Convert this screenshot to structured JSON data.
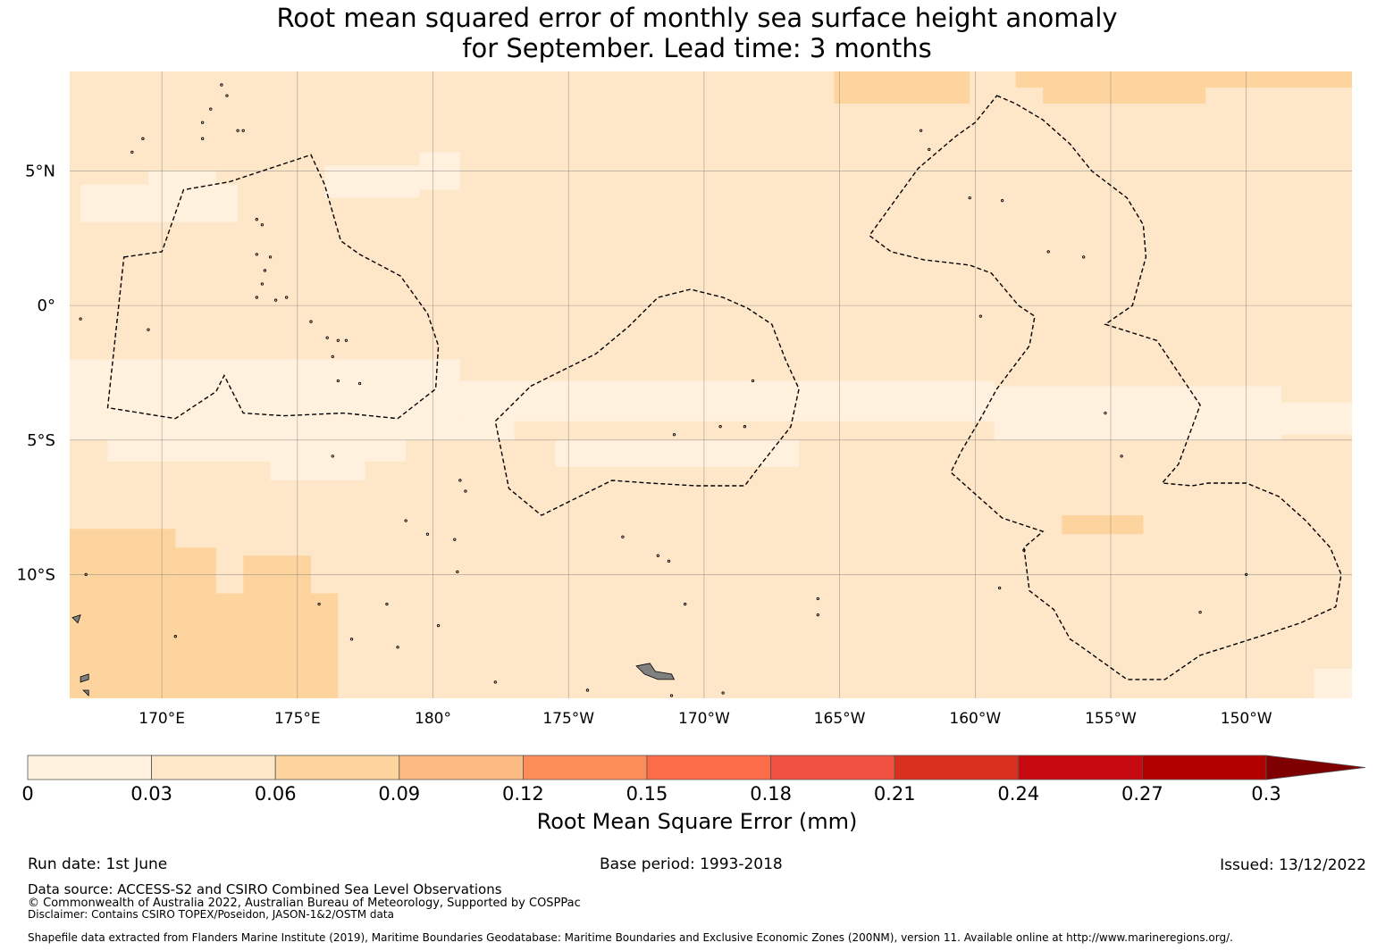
{
  "title_line1": "Root mean squared error of monthly sea surface height anomaly",
  "title_line2": "for September. Lead time: 3 months",
  "map": {
    "lon_range": [
      166.6,
      213.9
    ],
    "lat_range": [
      -14.6,
      8.7
    ],
    "lat_ticks": [
      {
        "value": 5,
        "label": "5°N"
      },
      {
        "value": 0,
        "label": "0°"
      },
      {
        "value": -5,
        "label": "5°S"
      },
      {
        "value": -10,
        "label": "10°S"
      }
    ],
    "lon_ticks": [
      {
        "value": 170,
        "label": "170°E"
      },
      {
        "value": 175,
        "label": "175°E"
      },
      {
        "value": 180,
        "label": "180°"
      },
      {
        "value": 185,
        "label": "175°W"
      },
      {
        "value": 190,
        "label": "170°W"
      },
      {
        "value": 195,
        "label": "165°W"
      },
      {
        "value": 200,
        "label": "160°W"
      },
      {
        "value": 205,
        "label": "155°W"
      },
      {
        "value": 210,
        "label": "150°W"
      }
    ],
    "background_color": "#fee6c8",
    "field": [
      {
        "lon": [
          166.6,
          181.0
        ],
        "lat": [
          -4.3,
          -2.0
        ],
        "level": "0-0.03"
      },
      {
        "lon": [
          181.0,
          200.7
        ],
        "lat": [
          -4.3,
          -2.8
        ],
        "level": "0-0.03"
      },
      {
        "lon": [
          200.7,
          211.3
        ],
        "lat": [
          -4.8,
          -3.0
        ],
        "level": "0-0.03"
      },
      {
        "lon": [
          211.3,
          213.9
        ],
        "lat": [
          -4.8,
          -3.6
        ],
        "level": "0-0.03"
      },
      {
        "lon": [
          166.6,
          183.0
        ],
        "lat": [
          -5.0,
          -4.3
        ],
        "level": "0-0.03"
      },
      {
        "lon": [
          168.0,
          179.0
        ],
        "lat": [
          -5.8,
          -5.0
        ],
        "level": "0-0.03"
      },
      {
        "lon": [
          174.0,
          177.5
        ],
        "lat": [
          -6.5,
          -5.8
        ],
        "level": "0-0.03"
      },
      {
        "lon": [
          184.5,
          193.5
        ],
        "lat": [
          -6.0,
          -5.0
        ],
        "level": "0-0.03"
      },
      {
        "lon": [
          200.7,
          211.3
        ],
        "lat": [
          -5.0,
          -4.8
        ],
        "level": "0-0.03"
      },
      {
        "lon": [
          167.0,
          172.8
        ],
        "lat": [
          3.1,
          4.5
        ],
        "level": "0-0.03"
      },
      {
        "lon": [
          169.5,
          172.0
        ],
        "lat": [
          4.5,
          5.0
        ],
        "level": "0-0.03"
      },
      {
        "lon": [
          176.0,
          179.5
        ],
        "lat": [
          4.0,
          5.2
        ],
        "level": "0-0.03"
      },
      {
        "lon": [
          179.5,
          181.0
        ],
        "lat": [
          4.3,
          5.7
        ],
        "level": "0-0.03"
      },
      {
        "lon": [
          212.5,
          213.9
        ],
        "lat": [
          -14.6,
          -13.5
        ],
        "level": "0-0.03"
      },
      {
        "lon": [
          166.6,
          176.5
        ],
        "lat": [
          -14.6,
          -10.7
        ],
        "level": "0.06-0.09"
      },
      {
        "lon": [
          166.6,
          170.5
        ],
        "lat": [
          -10.7,
          -8.3
        ],
        "level": "0.06-0.09"
      },
      {
        "lon": [
          170.5,
          172.0
        ],
        "lat": [
          -10.7,
          -9.0
        ],
        "level": "0.06-0.09"
      },
      {
        "lon": [
          173.0,
          175.5
        ],
        "lat": [
          -10.7,
          -9.3
        ],
        "level": "0.06-0.09"
      },
      {
        "lon": [
          194.8,
          199.8
        ],
        "lat": [
          7.5,
          8.7
        ],
        "level": "0.06-0.09"
      },
      {
        "lon": [
          201.5,
          213.9
        ],
        "lat": [
          8.1,
          8.7
        ],
        "level": "0.06-0.09"
      },
      {
        "lon": [
          202.5,
          208.5
        ],
        "lat": [
          7.5,
          8.1
        ],
        "level": "0.06-0.09"
      },
      {
        "lon": [
          203.2,
          206.2
        ],
        "lat": [
          -8.5,
          -7.8
        ],
        "level": "0.06-0.09"
      }
    ],
    "eez_outlines": [
      {
        "points": [
          [
            168.6,
            1.8
          ],
          [
            170.0,
            2.0
          ],
          [
            170.8,
            4.3
          ],
          [
            172.5,
            4.6
          ],
          [
            175.5,
            5.6
          ],
          [
            176.0,
            4.5
          ],
          [
            176.6,
            2.4
          ],
          [
            177.3,
            1.9
          ],
          [
            178.8,
            1.1
          ],
          [
            179.8,
            -0.3
          ],
          [
            180.2,
            -1.5
          ],
          [
            180.1,
            -3.1
          ],
          [
            178.7,
            -4.2
          ],
          [
            176.7,
            -4.0
          ],
          [
            174.5,
            -4.1
          ],
          [
            173.0,
            -4.0
          ],
          [
            172.3,
            -2.6
          ],
          [
            172.0,
            -3.2
          ],
          [
            170.5,
            -4.2
          ],
          [
            168.0,
            -3.8
          ]
        ]
      },
      {
        "points": [
          [
            183.6,
            -3.0
          ],
          [
            186.0,
            -1.8
          ],
          [
            187.2,
            -0.8
          ],
          [
            188.3,
            0.3
          ],
          [
            189.5,
            0.6
          ],
          [
            190.7,
            0.3
          ],
          [
            191.6,
            -0.1
          ],
          [
            192.5,
            -0.7
          ],
          [
            193.0,
            -2.0
          ],
          [
            193.5,
            -3.1
          ],
          [
            193.2,
            -4.5
          ],
          [
            192.1,
            -5.9
          ],
          [
            191.5,
            -6.7
          ],
          [
            189.7,
            -6.7
          ],
          [
            188.0,
            -6.6
          ],
          [
            186.6,
            -6.5
          ],
          [
            184.0,
            -7.8
          ],
          [
            182.8,
            -6.8
          ],
          [
            182.3,
            -4.3
          ]
        ]
      },
      {
        "points": [
          [
            200.8,
            7.8
          ],
          [
            201.5,
            7.5
          ],
          [
            202.5,
            6.9
          ],
          [
            203.5,
            6.0
          ],
          [
            204.3,
            5.0
          ],
          [
            205.6,
            4.0
          ],
          [
            206.2,
            3.0
          ],
          [
            206.3,
            1.8
          ],
          [
            205.8,
            0.0
          ],
          [
            204.8,
            -0.7
          ],
          [
            206.7,
            -1.3
          ],
          [
            208.3,
            -3.7
          ],
          [
            207.5,
            -5.9
          ],
          [
            206.9,
            -6.6
          ],
          [
            208.0,
            -6.7
          ],
          [
            208.6,
            -6.6
          ],
          [
            210.0,
            -6.6
          ],
          [
            211.2,
            -7.1
          ],
          [
            212.2,
            -8.0
          ],
          [
            213.1,
            -9.0
          ],
          [
            213.5,
            -10.0
          ],
          [
            213.3,
            -11.2
          ],
          [
            212.0,
            -11.8
          ],
          [
            210.5,
            -12.3
          ],
          [
            208.3,
            -13.0
          ],
          [
            207.0,
            -13.9
          ],
          [
            205.6,
            -13.9
          ],
          [
            203.8,
            -12.6
          ],
          [
            203.5,
            -12.4
          ],
          [
            202.9,
            -11.3
          ],
          [
            202.0,
            -10.6
          ],
          [
            201.8,
            -9.0
          ],
          [
            202.5,
            -8.4
          ],
          [
            201.0,
            -7.9
          ],
          [
            199.1,
            -6.2
          ],
          [
            199.5,
            -5.4
          ],
          [
            200.2,
            -4.2
          ],
          [
            200.8,
            -3.1
          ],
          [
            202.0,
            -1.5
          ],
          [
            202.2,
            -0.4
          ],
          [
            201.6,
            0.0
          ],
          [
            200.6,
            1.2
          ],
          [
            199.8,
            1.5
          ],
          [
            198.1,
            1.7
          ],
          [
            196.9,
            2.0
          ],
          [
            196.1,
            2.6
          ],
          [
            197.9,
            5.1
          ],
          [
            199.3,
            6.3
          ],
          [
            200.0,
            6.8
          ]
        ]
      }
    ],
    "islands": [
      {
        "points": [
          [
            187.5,
            -13.4
          ],
          [
            188.0,
            -13.3
          ],
          [
            188.2,
            -13.6
          ],
          [
            188.8,
            -13.7
          ],
          [
            188.9,
            -13.9
          ],
          [
            188.3,
            -13.9
          ],
          [
            187.8,
            -13.7
          ]
        ],
        "fill": "#808080"
      },
      {
        "points": [
          [
            166.7,
            -11.6
          ],
          [
            167.0,
            -11.5
          ],
          [
            166.9,
            -11.8
          ]
        ],
        "fill": "#808080"
      },
      {
        "points": [
          [
            167.0,
            -13.8
          ],
          [
            167.3,
            -13.7
          ],
          [
            167.3,
            -13.9
          ],
          [
            167.0,
            -14.0
          ]
        ],
        "fill": "#808080"
      },
      {
        "points": [
          [
            167.1,
            -14.3
          ],
          [
            167.3,
            -14.3
          ],
          [
            167.3,
            -14.5
          ]
        ],
        "fill": "#808080"
      }
    ],
    "dots": [
      [
        173.5,
        3.2
      ],
      [
        173.7,
        3.0
      ],
      [
        173.5,
        1.9
      ],
      [
        174.0,
        1.8
      ],
      [
        173.8,
        1.3
      ],
      [
        173.7,
        0.8
      ],
      [
        174.6,
        0.3
      ],
      [
        174.2,
        0.2
      ],
      [
        173.5,
        0.3
      ],
      [
        175.5,
        -0.6
      ],
      [
        176.1,
        -1.2
      ],
      [
        176.8,
        -1.3
      ],
      [
        176.5,
        -1.3
      ],
      [
        176.3,
        -1.9
      ],
      [
        176.5,
        -2.8
      ],
      [
        177.3,
        -2.9
      ],
      [
        176.3,
        -5.6
      ],
      [
        171.8,
        7.3
      ],
      [
        173.0,
        6.5
      ],
      [
        172.8,
        6.5
      ],
      [
        171.5,
        6.8
      ],
      [
        171.5,
        6.2
      ],
      [
        169.3,
        6.2
      ],
      [
        168.9,
        5.7
      ],
      [
        172.4,
        7.8
      ],
      [
        172.2,
        8.2
      ],
      [
        167.0,
        -0.5
      ],
      [
        169.5,
        -0.9
      ],
      [
        191.8,
        -2.8
      ],
      [
        191.5,
        -4.5
      ],
      [
        190.6,
        -4.5
      ],
      [
        188.9,
        -4.8
      ],
      [
        198.0,
        6.5
      ],
      [
        198.3,
        5.8
      ],
      [
        199.8,
        4.0
      ],
      [
        201.0,
        3.9
      ],
      [
        202.7,
        2.0
      ],
      [
        204.0,
        1.8
      ],
      [
        200.2,
        -0.4
      ],
      [
        204.8,
        -4.0
      ],
      [
        181.0,
        -6.5
      ],
      [
        181.2,
        -6.9
      ],
      [
        180.8,
        -8.7
      ],
      [
        180.9,
        -9.9
      ],
      [
        179.8,
        -8.5
      ],
      [
        179.0,
        -8.0
      ],
      [
        182.3,
        -14.0
      ],
      [
        180.2,
        -11.9
      ],
      [
        177.0,
        -12.4
      ],
      [
        175.8,
        -11.1
      ],
      [
        178.3,
        -11.1
      ],
      [
        187.0,
        -8.6
      ],
      [
        188.3,
        -9.3
      ],
      [
        188.7,
        -9.5
      ],
      [
        189.3,
        -11.1
      ],
      [
        194.2,
        -10.9
      ],
      [
        194.2,
        -11.5
      ],
      [
        200.9,
        -10.5
      ],
      [
        201.8,
        -9.1
      ],
      [
        205.4,
        -5.6
      ],
      [
        210.0,
        -10.0
      ],
      [
        208.3,
        -11.4
      ],
      [
        167.2,
        -10.0
      ],
      [
        170.5,
        -12.3
      ],
      [
        178.7,
        -12.7
      ],
      [
        185.7,
        -14.3
      ],
      [
        188.8,
        -14.5
      ],
      [
        190.7,
        -14.4
      ]
    ]
  },
  "colorbar": {
    "ticks": [
      "0",
      "0.03",
      "0.06",
      "0.09",
      "0.12",
      "0.15",
      "0.18",
      "0.21",
      "0.24",
      "0.27",
      "0.3"
    ],
    "colors": [
      "#fff1de",
      "#fee6c8",
      "#fdd49e",
      "#fdbb84",
      "#fc8d59",
      "#fc6c48",
      "#ef5040",
      "#d7301f",
      "#c5090f",
      "#b00000"
    ],
    "extend_color": "#7f0000",
    "label": "Root Mean Square Error (mm)"
  },
  "footer": {
    "run_date": "Run date: 1st June",
    "base_period": "Base period: 1993-2018",
    "issued": "Issued: 13/12/2022",
    "data_source": "Data source: ACCESS-S2 and CSIRO Combined Sea Level Observations",
    "copyright": "© Commonwealth of Australia 2022, Australian Bureau of Meteorology, Supported by COSPPac",
    "disclaimer": "Disclaimer: Contains CSIRO TOPEX/Poseidon, JASON-1&2/OSTM data",
    "shapefile": "Shapefile data extracted from Flanders Marine Institute (2019), Maritime Boundaries Geodatabase: Maritime Boundaries and Exclusive Economic Zones (200NM), version 11. Available online at http://www.marineregions.org/."
  }
}
